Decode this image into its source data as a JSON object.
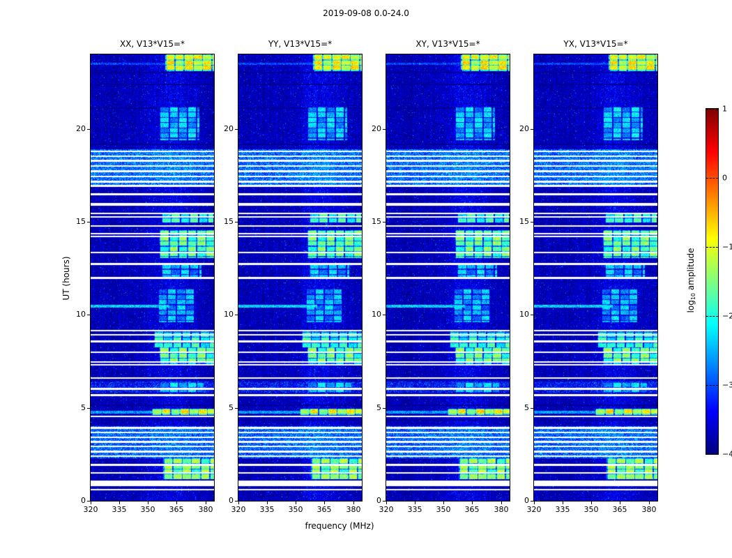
{
  "figure": {
    "title": "2019-09-08 0.0-24.0",
    "xlabel": "frequency (MHz)",
    "ylabel": "UT (hours)",
    "panels": [
      {
        "title": "XX, V13*V15=*"
      },
      {
        "title": "YY, V13*V15=*"
      },
      {
        "title": "XY, V13*V15=*"
      },
      {
        "title": "YX, V13*V15=*"
      }
    ],
    "colorbar": {
      "label_prefix": "log",
      "label_sub": "10",
      "label_suffix": " amplitude",
      "tick_labels": [
        "1",
        "0",
        "−1",
        "−2",
        "−3",
        "−4"
      ]
    },
    "x_tick_labels": [
      "320",
      "335",
      "350",
      "365",
      "380"
    ],
    "y_tick_labels": [
      "0",
      "5",
      "10",
      "15",
      "20"
    ]
  },
  "chart_data": {
    "type": "heatmap",
    "title": "2019-09-08 0.0-24.0",
    "subplots": [
      "XX, V13*V15=*",
      "YY, V13*V15=*",
      "XY, V13*V15=*",
      "YX, V13*V15=*"
    ],
    "xlabel": "frequency (MHz)",
    "ylabel": "UT (hours)",
    "x_range": [
      320,
      384.5
    ],
    "x_tick_values": [
      320,
      335,
      350,
      365,
      380
    ],
    "y_range": [
      0,
      24
    ],
    "y_tick_values": [
      0,
      5,
      10,
      15,
      20
    ],
    "colorbar": {
      "label": "log10 amplitude",
      "min": -4,
      "max": 1,
      "tick_values": [
        1,
        0,
        -1,
        -2,
        -3,
        -4
      ],
      "colormap": "jet"
    },
    "background_level": -3.75,
    "noise_sigma": 0.2,
    "speckle_probability": 0.02,
    "vertical_band": {
      "f_center": 362,
      "f_sigma": 8,
      "boost": 0.3
    },
    "elevated_bands": [
      {
        "t0": 16.88,
        "t1": 18.9,
        "level": -2.85
      },
      {
        "t0": 2.28,
        "t1": 4.0,
        "level": -2.9
      },
      {
        "t0": 5.82,
        "t1": 6.42,
        "level": -3.35
      }
    ],
    "flagged_white_rows": [
      {
        "t": 18.78,
        "h": 0.09
      },
      {
        "t": 18.52,
        "h": 0.08
      },
      {
        "t": 18.28,
        "h": 0.1
      },
      {
        "t": 18.0,
        "h": 0.08
      },
      {
        "t": 17.73,
        "h": 0.1
      },
      {
        "t": 17.45,
        "h": 0.08
      },
      {
        "t": 17.16,
        "h": 0.1
      },
      {
        "t": 16.93,
        "h": 0.08
      },
      {
        "t": 16.48,
        "h": 0.14
      },
      {
        "t": 15.95,
        "h": 0.14
      },
      {
        "t": 15.45,
        "h": 0.09
      },
      {
        "t": 15.27,
        "h": 0.08
      },
      {
        "t": 14.78,
        "h": 0.1
      },
      {
        "t": 14.36,
        "h": 0.08
      },
      {
        "t": 14.22,
        "h": 0.08
      },
      {
        "t": 13.35,
        "h": 0.1
      },
      {
        "t": 12.72,
        "h": 0.1
      },
      {
        "t": 11.98,
        "h": 0.1
      },
      {
        "t": 9.15,
        "h": 0.09
      },
      {
        "t": 8.93,
        "h": 0.08
      },
      {
        "t": 8.58,
        "h": 0.1
      },
      {
        "t": 7.98,
        "h": 0.09
      },
      {
        "t": 7.45,
        "h": 0.08
      },
      {
        "t": 7.3,
        "h": 0.08
      },
      {
        "t": 6.6,
        "h": 0.1
      },
      {
        "t": 6.02,
        "h": 0.09
      },
      {
        "t": 5.68,
        "h": 0.08
      },
      {
        "t": 4.55,
        "h": 0.08
      },
      {
        "t": 3.92,
        "h": 0.08
      },
      {
        "t": 3.67,
        "h": 0.1
      },
      {
        "t": 3.42,
        "h": 0.08
      },
      {
        "t": 3.17,
        "h": 0.1
      },
      {
        "t": 2.92,
        "h": 0.08
      },
      {
        "t": 2.64,
        "h": 0.1
      },
      {
        "t": 2.4,
        "h": 0.08
      },
      {
        "t": 1.92,
        "h": 0.1
      },
      {
        "t": 1.5,
        "h": 0.1
      },
      {
        "t": 0.95,
        "h": 0.3
      },
      {
        "t": 0.6,
        "h": 0.08
      }
    ],
    "dark_rows": [
      {
        "t": 23.02
      },
      {
        "t": 22.4
      },
      {
        "t": 21.1
      },
      {
        "t": 19.15
      },
      {
        "t": 5.15
      },
      {
        "t": 4.35
      }
    ],
    "rfi_blobs": [
      {
        "t0": 23.1,
        "t1": 24.0,
        "f0": 359,
        "f1": 384.5,
        "v": -1.05
      },
      {
        "t0": 19.4,
        "t1": 21.2,
        "f0": 356,
        "f1": 377.0,
        "v": -2.55
      },
      {
        "t0": 14.95,
        "t1": 15.5,
        "f0": 357,
        "f1": 384.0,
        "v": -2.0
      },
      {
        "t0": 13.05,
        "t1": 14.55,
        "f0": 356,
        "f1": 384.5,
        "v": -1.75
      },
      {
        "t0": 12.05,
        "t1": 12.75,
        "f0": 357,
        "f1": 378.0,
        "v": -2.6
      },
      {
        "t0": 9.6,
        "t1": 11.4,
        "f0": 355,
        "f1": 374.0,
        "v": -2.65
      },
      {
        "t0": 8.25,
        "t1": 9.1,
        "f0": 353,
        "f1": 384.5,
        "v": -2.1
      },
      {
        "t0": 7.35,
        "t1": 8.25,
        "f0": 356,
        "f1": 384.5,
        "v": -1.7
      },
      {
        "t0": 5.85,
        "t1": 6.4,
        "f0": 356,
        "f1": 379.0,
        "v": -2.5
      },
      {
        "t0": 4.6,
        "t1": 4.95,
        "f0": 352,
        "f1": 384.5,
        "v": -1.1
      },
      {
        "t0": 1.15,
        "t1": 2.3,
        "f0": 358,
        "f1": 384.5,
        "v": -1.55
      }
    ],
    "streaks": [
      {
        "t": 10.45,
        "f0": 320,
        "f1": 361,
        "v": -2.35,
        "h": 0.08
      },
      {
        "t": 4.75,
        "f0": 320,
        "f1": 354,
        "v": -2.6,
        "h": 0.07
      },
      {
        "t": 23.5,
        "f0": 320,
        "f1": 359,
        "v": -3.05,
        "h": 0.06
      }
    ]
  }
}
